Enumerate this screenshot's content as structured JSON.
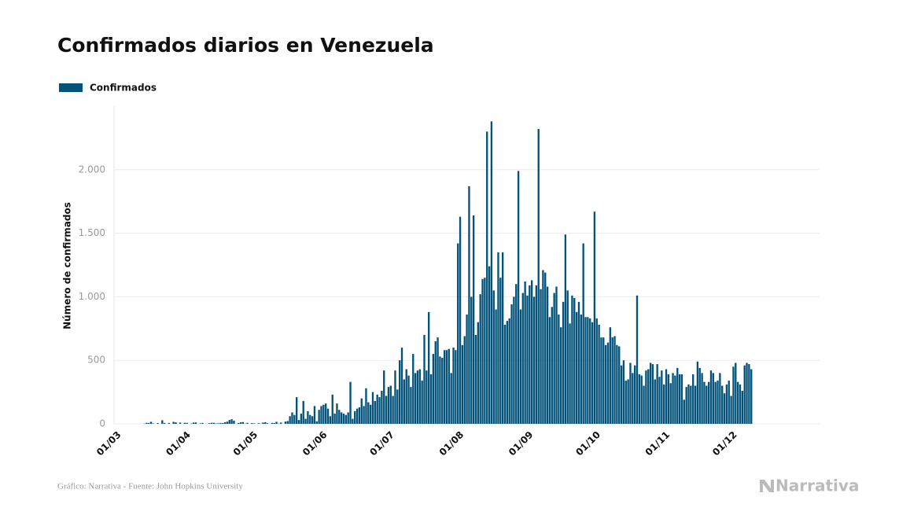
{
  "chart_data": {
    "type": "bar",
    "title": "Confirmados diarios en Venezuela",
    "ylabel": "Número de confirmados",
    "source": "Gráfico: Narrativa - Fuente: John Hopkins University",
    "logo": "Narrativa",
    "grid": true,
    "legend": "top-left",
    "ylim": [
      0,
      2500
    ],
    "yticks": [
      0,
      500,
      {
        "value": 1000,
        "label": "1.000"
      },
      {
        "value": 1500,
        "label": "1.500"
      },
      {
        "value": 2000,
        "label": "2.000"
      }
    ],
    "categories": [
      "01/03",
      null,
      null,
      null,
      null,
      null,
      null,
      null,
      null,
      null,
      null,
      null,
      null,
      null,
      null,
      null,
      null,
      null,
      null,
      null,
      null,
      null,
      null,
      null,
      null,
      null,
      null,
      null,
      null,
      null,
      null,
      "01/04",
      null,
      null,
      null,
      null,
      null,
      null,
      null,
      null,
      null,
      null,
      null,
      null,
      null,
      null,
      null,
      null,
      null,
      null,
      null,
      null,
      null,
      null,
      null,
      null,
      null,
      null,
      null,
      null,
      null,
      "01/05",
      null,
      null,
      null,
      null,
      null,
      null,
      null,
      null,
      null,
      null,
      null,
      null,
      null,
      null,
      null,
      null,
      null,
      null,
      null,
      null,
      null,
      null,
      null,
      null,
      null,
      null,
      null,
      null,
      null,
      null,
      "01/06",
      null,
      null,
      null,
      null,
      null,
      null,
      null,
      null,
      null,
      null,
      null,
      null,
      null,
      null,
      null,
      null,
      null,
      null,
      null,
      null,
      null,
      null,
      null,
      null,
      null,
      null,
      null,
      null,
      null,
      "01/07",
      null,
      null,
      null,
      null,
      null,
      null,
      null,
      null,
      null,
      null,
      null,
      null,
      null,
      null,
      null,
      null,
      null,
      null,
      null,
      null,
      null,
      null,
      null,
      null,
      null,
      null,
      null,
      null,
      null,
      null,
      "01/08",
      null,
      null,
      null,
      null,
      null,
      null,
      null,
      null,
      null,
      null,
      null,
      null,
      null,
      null,
      null,
      null,
      null,
      null,
      null,
      null,
      null,
      null,
      null,
      null,
      null,
      null,
      null,
      null,
      null,
      null,
      "01/09",
      null,
      null,
      null,
      null,
      null,
      null,
      null,
      null,
      null,
      null,
      null,
      null,
      null,
      null,
      null,
      null,
      null,
      null,
      null,
      null,
      null,
      null,
      null,
      null,
      null,
      null,
      null,
      null,
      null,
      "01/10",
      null,
      null,
      null,
      null,
      null,
      null,
      null,
      null,
      null,
      null,
      null,
      null,
      null,
      null,
      null,
      null,
      null,
      null,
      null,
      null,
      null,
      null,
      null,
      null,
      null,
      null,
      null,
      null,
      null,
      null,
      "01/11",
      null,
      null,
      null,
      null,
      null,
      null,
      null,
      null,
      null,
      null,
      null,
      null,
      null,
      null,
      null,
      null,
      null,
      null,
      null,
      null,
      null,
      null,
      null,
      null,
      null,
      null,
      null,
      null,
      null,
      "01/12",
      null,
      null,
      null,
      null,
      null,
      null,
      null,
      null
    ],
    "series": [
      {
        "name": "Confirmados",
        "color": "#02527a",
        "values": [
          null,
          null,
          null,
          null,
          null,
          null,
          null,
          null,
          null,
          null,
          null,
          null,
          2,
          8,
          7,
          16,
          3,
          0,
          6,
          0,
          28,
          7,
          0,
          7,
          0,
          16,
          12,
          0,
          10,
          0,
          8,
          8,
          0,
          3,
          10,
          11,
          0,
          4,
          7,
          0,
          0,
          5,
          8,
          8,
          3,
          4,
          7,
          6,
          12,
          17,
          30,
          36,
          25,
          0,
          6,
          12,
          14,
          2,
          8,
          0,
          6,
          4,
          0,
          5,
          2,
          10,
          13,
          5,
          0,
          7,
          7,
          16,
          2,
          10,
          0,
          18,
          22,
          60,
          90,
          70,
          210,
          30,
          80,
          180,
          40,
          100,
          70,
          60,
          140,
          20,
          110,
          140,
          150,
          160,
          120,
          60,
          230,
          80,
          160,
          110,
          90,
          80,
          70,
          90,
          330,
          40,
          100,
          120,
          130,
          200,
          140,
          280,
          170,
          150,
          250,
          180,
          230,
          210,
          260,
          420,
          220,
          290,
          300,
          220,
          420,
          270,
          500,
          600,
          350,
          430,
          380,
          290,
          550,
          400,
          420,
          430,
          340,
          700,
          420,
          880,
          390,
          550,
          650,
          680,
          530,
          520,
          580,
          580,
          590,
          400,
          600,
          580,
          1420,
          1630,
          620,
          690,
          860,
          1870,
          1000,
          1640,
          700,
          800,
          1020,
          1140,
          1150,
          2300,
          1240,
          2380,
          1050,
          900,
          1350,
          1150,
          1350,
          780,
          810,
          830,
          940,
          1000,
          1100,
          1990,
          900,
          1030,
          1120,
          1010,
          1090,
          1130,
          1000,
          1090,
          2320,
          1060,
          1210,
          1190,
          1080,
          840,
          920,
          1030,
          1080,
          860,
          760,
          960,
          1490,
          1050,
          790,
          1010,
          990,
          880,
          960,
          860,
          1420,
          840,
          840,
          830,
          800,
          1670,
          830,
          780,
          680,
          680,
          620,
          640,
          760,
          680,
          690,
          620,
          610,
          460,
          500,
          340,
          350,
          480,
          400,
          460,
          1010,
          390,
          380,
          300,
          420,
          430,
          480,
          470,
          350,
          470,
          370,
          420,
          310,
          430,
          390,
          320,
          400,
          380,
          440,
          390,
          390,
          190,
          290,
          310,
          300,
          390,
          300,
          490,
          440,
          400,
          330,
          300,
          330,
          420,
          400,
          330,
          340,
          400,
          300,
          240,
          310,
          340,
          220,
          450,
          480,
          330,
          310,
          260,
          460,
          480,
          470,
          430
        ]
      }
    ]
  }
}
